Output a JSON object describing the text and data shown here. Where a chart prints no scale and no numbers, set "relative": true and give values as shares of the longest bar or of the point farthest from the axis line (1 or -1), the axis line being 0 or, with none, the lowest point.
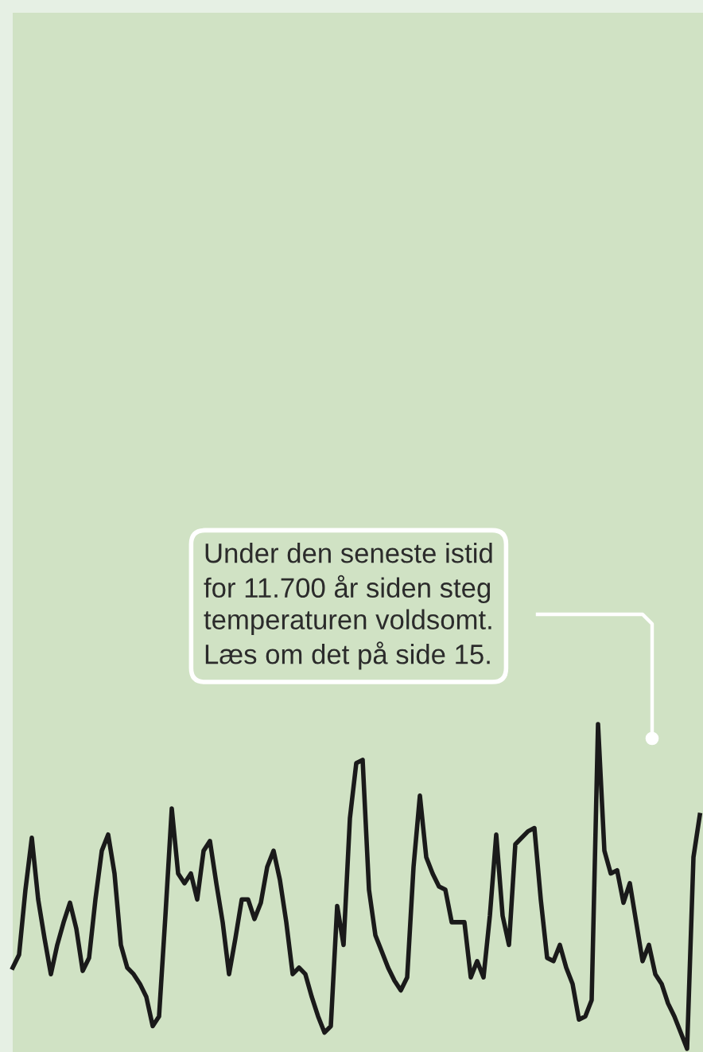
{
  "chart_data": {
    "type": "line",
    "relative": true,
    "color": "#1a1a1a",
    "line_style": "solid",
    "marker": "none",
    "legend": false,
    "categories": [
      null,
      null,
      null,
      null,
      null,
      null,
      null,
      null,
      null,
      null,
      null,
      null,
      null,
      null,
      null,
      null,
      null,
      null,
      null,
      null,
      null,
      null,
      null,
      null,
      null,
      null,
      null,
      null,
      null,
      null,
      null,
      null,
      null,
      null,
      null,
      null,
      null,
      null,
      null,
      null,
      null,
      null,
      null,
      null,
      null,
      null,
      null,
      null,
      null,
      null,
      null,
      null,
      null,
      null,
      null,
      null,
      null,
      null,
      null,
      null,
      null,
      null,
      null,
      null,
      null,
      null,
      null,
      null,
      null,
      null,
      null,
      null,
      null,
      null,
      null,
      null,
      null,
      null,
      null,
      null,
      null,
      null,
      null,
      null,
      null,
      null,
      null,
      null,
      null,
      null,
      null,
      null,
      null,
      null,
      null,
      null,
      null,
      null,
      null,
      null,
      null,
      null,
      null,
      null,
      null,
      null,
      null,
      null,
      null
    ],
    "values": [
      0.25,
      0.29,
      0.49,
      0.65,
      0.46,
      0.34,
      0.23,
      0.32,
      0.39,
      0.45,
      0.37,
      0.24,
      0.28,
      0.46,
      0.61,
      0.66,
      0.54,
      0.32,
      0.25,
      0.23,
      0.2,
      0.16,
      0.07,
      0.1,
      0.41,
      0.74,
      0.54,
      0.51,
      0.54,
      0.46,
      0.61,
      0.64,
      0.51,
      0.39,
      0.23,
      0.34,
      0.46,
      0.46,
      0.4,
      0.45,
      0.56,
      0.61,
      0.52,
      0.39,
      0.23,
      0.25,
      0.23,
      0.16,
      0.1,
      0.05,
      0.07,
      0.44,
      0.32,
      0.71,
      0.88,
      0.89,
      0.49,
      0.35,
      0.3,
      0.25,
      0.21,
      0.18,
      0.22,
      0.56,
      0.78,
      0.59,
      0.54,
      0.5,
      0.49,
      0.39,
      0.39,
      0.39,
      0.22,
      0.27,
      0.22,
      0.41,
      0.66,
      0.41,
      0.32,
      0.63,
      0.65,
      0.67,
      0.68,
      0.46,
      0.28,
      0.27,
      0.32,
      0.25,
      0.2,
      0.09,
      0.1,
      0.15,
      1,
      0.61,
      0.54,
      0.55,
      0.45,
      0.51,
      0.39,
      0.27,
      0.32,
      0.23,
      0.2,
      0.14,
      0.1,
      0.05,
      0,
      0.59,
      0.72
    ],
    "annotations": [
      "Under den seneste istid\nfor 11.700 år siden steg\ntemperaturen voldsomt.\nLæs om det på side 15."
    ]
  }
}
